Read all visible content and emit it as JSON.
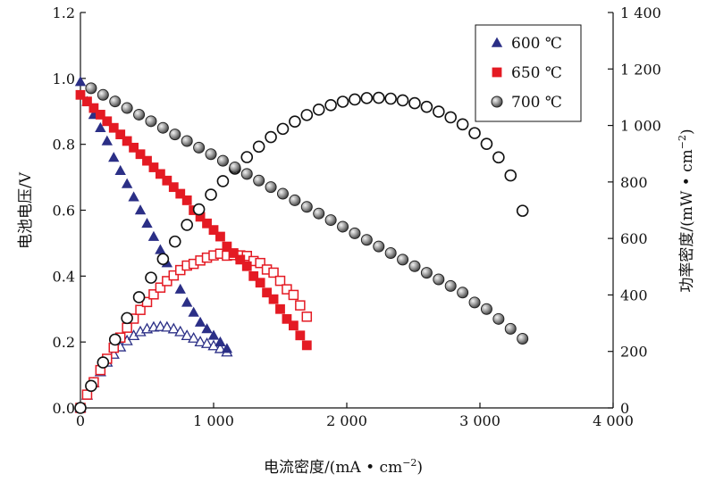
{
  "chart_data": {
    "type": "scatter",
    "xlabel": "电流密度/(mA • cm",
    "xlabel_sup": "−2",
    "xlabel_end": ")",
    "ylabel_left": "电池电压/V",
    "ylabel_right": "功率密度/(mW • cm",
    "ylabel_right_sup": "−2",
    "ylabel_right_end": ")",
    "xlim": [
      0,
      4000
    ],
    "ylim_left": [
      0.0,
      1.2
    ],
    "ylim_right": [
      0,
      1400
    ],
    "x_ticks": [
      0,
      1000,
      2000,
      3000,
      4000
    ],
    "x_tick_labels": [
      "0",
      "1 000",
      "2 000",
      "3 000",
      "4 000"
    ],
    "y_left_ticks": [
      0.0,
      0.2,
      0.4,
      0.6,
      0.8,
      1.0,
      1.2
    ],
    "y_left_tick_labels": [
      "0.0",
      "0.2",
      "0.4",
      "0.6",
      "0.8",
      "1.0",
      "1.2"
    ],
    "y_right_ticks": [
      0,
      200,
      400,
      600,
      800,
      1000,
      1200,
      1400
    ],
    "y_right_tick_labels": [
      "0",
      "200",
      "400",
      "600",
      "800",
      "1 000",
      "1 200",
      "1 400"
    ],
    "grid": false,
    "legend_position": "top-right",
    "series": [
      {
        "name": "600 ℃",
        "marker": "triangle",
        "color": "#2b2f86",
        "voltage": {
          "x": [
            0,
            50,
            100,
            150,
            200,
            250,
            300,
            350,
            400,
            450,
            500,
            550,
            600,
            650,
            700,
            750,
            800,
            850,
            900,
            950,
            1000,
            1050,
            1100
          ],
          "y": [
            0.99,
            0.93,
            0.89,
            0.85,
            0.81,
            0.76,
            0.72,
            0.68,
            0.64,
            0.6,
            0.56,
            0.52,
            0.48,
            0.44,
            0.4,
            0.36,
            0.32,
            0.29,
            0.26,
            0.24,
            0.22,
            0.2,
            0.18
          ]
        },
        "power": {
          "x": [
            0,
            50,
            100,
            150,
            200,
            250,
            300,
            350,
            400,
            450,
            500,
            550,
            600,
            650,
            700,
            750,
            800,
            850,
            900,
            950,
            1000,
            1050,
            1100
          ],
          "y": [
            0,
            45,
            89,
            128,
            162,
            190,
            216,
            238,
            256,
            270,
            280,
            286,
            288,
            286,
            280,
            270,
            256,
            247,
            234,
            228,
            220,
            210,
            198
          ]
        }
      },
      {
        "name": "650 ℃",
        "marker": "square",
        "color": "#e41a23",
        "voltage": {
          "x": [
            0,
            50,
            100,
            150,
            200,
            250,
            300,
            350,
            400,
            450,
            500,
            550,
            600,
            650,
            700,
            750,
            800,
            850,
            900,
            950,
            1000,
            1050,
            1100,
            1150,
            1200,
            1250,
            1300,
            1350,
            1400,
            1450,
            1500,
            1550,
            1600,
            1650,
            1700
          ],
          "y": [
            0.95,
            0.93,
            0.91,
            0.89,
            0.87,
            0.85,
            0.83,
            0.81,
            0.79,
            0.77,
            0.75,
            0.73,
            0.71,
            0.69,
            0.67,
            0.65,
            0.63,
            0.6,
            0.58,
            0.56,
            0.54,
            0.52,
            0.49,
            0.47,
            0.45,
            0.43,
            0.4,
            0.38,
            0.35,
            0.33,
            0.3,
            0.27,
            0.25,
            0.22,
            0.19
          ]
        },
        "power": {
          "x": [
            0,
            50,
            100,
            150,
            200,
            250,
            300,
            350,
            400,
            450,
            500,
            550,
            600,
            650,
            700,
            750,
            800,
            850,
            900,
            950,
            1000,
            1050,
            1100,
            1150,
            1200,
            1250,
            1300,
            1350,
            1400,
            1450,
            1500,
            1550,
            1600,
            1650,
            1700
          ],
          "y": [
            0,
            47,
            91,
            134,
            174,
            213,
            249,
            284,
            316,
            347,
            375,
            402,
            426,
            449,
            469,
            488,
            504,
            510,
            522,
            532,
            540,
            546,
            539,
            541,
            540,
            538,
            520,
            513,
            490,
            479,
            450,
            420,
            400,
            363,
            323
          ]
        }
      },
      {
        "name": "700 ℃",
        "marker": "circle",
        "color": "#777777",
        "voltage": {
          "x": [
            80,
            170,
            260,
            350,
            440,
            530,
            620,
            710,
            800,
            890,
            980,
            1070,
            1160,
            1250,
            1340,
            1430,
            1520,
            1610,
            1700,
            1790,
            1880,
            1970,
            2060,
            2150,
            2240,
            2330,
            2420,
            2510,
            2600,
            2690,
            2780,
            2870,
            2960,
            3050,
            3140,
            3230,
            3320
          ],
          "y": [
            0.97,
            0.95,
            0.93,
            0.91,
            0.89,
            0.87,
            0.85,
            0.83,
            0.81,
            0.79,
            0.77,
            0.75,
            0.73,
            0.71,
            0.69,
            0.67,
            0.65,
            0.63,
            0.61,
            0.59,
            0.57,
            0.55,
            0.53,
            0.51,
            0.49,
            0.47,
            0.45,
            0.43,
            0.41,
            0.39,
            0.37,
            0.35,
            0.32,
            0.3,
            0.27,
            0.24,
            0.21
          ]
        },
        "power": {
          "x": [
            0,
            80,
            170,
            260,
            350,
            440,
            530,
            620,
            710,
            800,
            890,
            980,
            1070,
            1160,
            1250,
            1340,
            1430,
            1520,
            1610,
            1700,
            1790,
            1880,
            1970,
            2060,
            2150,
            2240,
            2330,
            2420,
            2510,
            2600,
            2690,
            2780,
            2870,
            2960,
            3050,
            3140,
            3230,
            3320
          ],
          "y": [
            0,
            78,
            161,
            242,
            318,
            392,
            461,
            527,
            589,
            648,
            703,
            755,
            803,
            847,
            888,
            925,
            959,
            988,
            1014,
            1037,
            1056,
            1072,
            1084,
            1092,
            1097,
            1098,
            1095,
            1089,
            1079,
            1066,
            1049,
            1029,
            1004,
            973,
            935,
            887,
            823,
            698
          ]
        }
      }
    ]
  }
}
